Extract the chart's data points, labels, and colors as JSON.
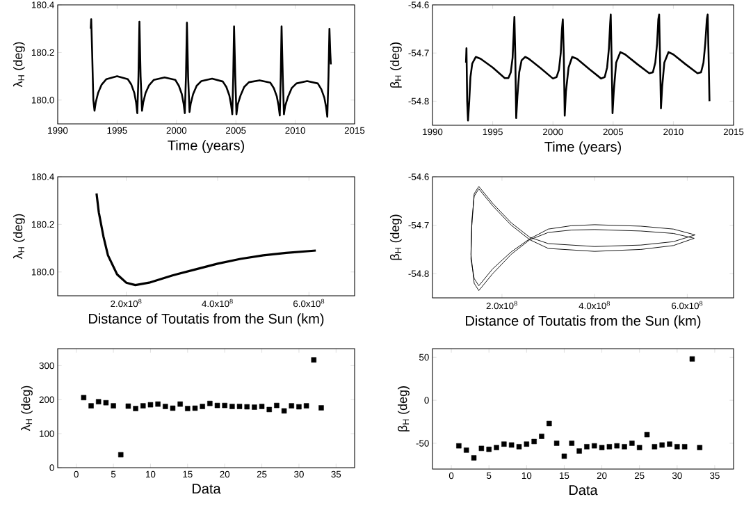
{
  "chart_data": [
    {
      "type": "line",
      "xlabel": "Time (years)",
      "ylabel": "λ$_{H}$ (deg)",
      "color": "#000000",
      "xlim": [
        1990,
        2015
      ],
      "ylim": [
        179.9,
        180.4
      ],
      "xticks": [
        1990,
        1995,
        2000,
        2005,
        2010,
        2015
      ],
      "yticks": [
        {
          "value": 180,
          "label": "180.0"
        },
        180.2,
        180.4
      ],
      "x": [
        1992.78,
        1992.82,
        1992.9,
        1993.0,
        1993.1,
        1993.2,
        1993.4,
        1993.7,
        1994.1,
        1995.0,
        1995.9,
        1996.2,
        1996.45,
        1996.6,
        1996.7,
        1996.8,
        1996.88,
        1996.98,
        1997.1,
        1997.2,
        1997.4,
        1997.7,
        1998.1,
        1999.0,
        1999.9,
        2000.2,
        2000.45,
        2000.6,
        2000.7,
        2000.8,
        2000.88,
        2000.98,
        2001.1,
        2001.2,
        2001.4,
        2001.7,
        2002.1,
        2003.0,
        2003.9,
        2004.2,
        2004.45,
        2004.6,
        2004.7,
        2004.78,
        2004.85,
        2004.95,
        2005.05,
        2005.15,
        2005.4,
        2005.7,
        2006.1,
        2007.0,
        2007.9,
        2008.2,
        2008.45,
        2008.6,
        2008.7,
        2008.78,
        2008.85,
        2008.95,
        2009.05,
        2009.15,
        2009.4,
        2009.7,
        2010.1,
        2011.0,
        2011.9,
        2012.2,
        2012.45,
        2012.6,
        2012.7,
        2012.8,
        2012.88,
        2012.95,
        2013.0
      ],
      "values": [
        180.3,
        180.34,
        180.2,
        180.0,
        179.955,
        179.99,
        180.03,
        180.065,
        180.088,
        180.1,
        180.088,
        180.065,
        180.03,
        179.99,
        179.945,
        180.1,
        180.33,
        180.1,
        179.955,
        179.99,
        180.03,
        180.063,
        180.085,
        180.095,
        180.085,
        180.06,
        180.025,
        179.985,
        179.945,
        180.1,
        180.325,
        180.1,
        179.95,
        179.985,
        180.025,
        180.06,
        180.08,
        180.09,
        180.078,
        180.055,
        180.02,
        179.98,
        179.94,
        180.1,
        180.31,
        180.1,
        179.94,
        179.98,
        180.02,
        180.055,
        180.075,
        180.083,
        180.073,
        180.05,
        180.015,
        179.975,
        179.935,
        180.1,
        180.31,
        180.1,
        179.94,
        179.975,
        180.015,
        180.05,
        180.07,
        180.08,
        180.07,
        180.045,
        180.01,
        179.97,
        179.93,
        180.1,
        180.3,
        180.2,
        180.15
      ]
    },
    {
      "type": "line",
      "xlabel": "Time (years)",
      "ylabel": "β$_{H}$ (deg)",
      "color": "#000000",
      "xlim": [
        1990,
        2015
      ],
      "ylim": [
        -54.85,
        -54.6
      ],
      "xticks": [
        1990,
        1995,
        2000,
        2005,
        2010,
        2015
      ],
      "yticks": [
        -54.8,
        -54.7,
        -54.6
      ],
      "x": [
        1992.78,
        1992.82,
        1992.88,
        1992.95,
        1993.05,
        1993.15,
        1993.3,
        1993.6,
        1994.0,
        1995.0,
        1996.0,
        1996.3,
        1996.5,
        1996.65,
        1996.74,
        1996.8,
        1996.87,
        1996.95,
        1997.05,
        1997.2,
        1997.4,
        1997.7,
        1998.0,
        1999.0,
        2000.0,
        2000.3,
        2000.5,
        2000.65,
        2000.75,
        2000.82,
        2000.9,
        2000.98,
        2001.08,
        2001.3,
        2001.6,
        2002.0,
        2003.0,
        2004.0,
        2004.3,
        2004.5,
        2004.65,
        2004.75,
        2004.8,
        2004.88,
        2004.95,
        2005.05,
        2005.25,
        2005.6,
        2006.0,
        2007.0,
        2008.0,
        2008.3,
        2008.5,
        2008.65,
        2008.75,
        2008.82,
        2008.9,
        2008.97,
        2009.07,
        2009.25,
        2009.6,
        2010.0,
        2011.0,
        2012.0,
        2012.3,
        2012.5,
        2012.65,
        2012.78,
        2012.85,
        2012.92,
        2013.0
      ],
      "values": [
        -54.72,
        -54.69,
        -54.8,
        -54.84,
        -54.8,
        -54.75,
        -54.722,
        -54.708,
        -54.712,
        -54.73,
        -54.752,
        -54.752,
        -54.74,
        -54.71,
        -54.66,
        -54.625,
        -54.7,
        -54.835,
        -54.79,
        -54.74,
        -54.715,
        -54.708,
        -54.712,
        -54.732,
        -54.753,
        -54.75,
        -54.735,
        -54.7,
        -54.65,
        -54.63,
        -54.7,
        -54.83,
        -54.78,
        -54.73,
        -54.708,
        -54.712,
        -54.733,
        -54.753,
        -54.75,
        -54.73,
        -54.69,
        -54.64,
        -54.62,
        -54.72,
        -54.825,
        -54.78,
        -54.72,
        -54.698,
        -54.703,
        -54.723,
        -54.742,
        -54.74,
        -54.72,
        -54.68,
        -54.63,
        -54.62,
        -54.72,
        -54.815,
        -54.77,
        -54.72,
        -54.698,
        -54.703,
        -54.723,
        -54.742,
        -54.74,
        -54.72,
        -54.68,
        -54.63,
        -54.62,
        -54.7,
        -54.8
      ]
    },
    {
      "type": "line",
      "xlabel": "Distance of Toutatis from the Sun (km)",
      "ylabel": "λ$_{H}$ (deg)",
      "color": "#000000",
      "xlim": [
        50000000,
        700000000
      ],
      "ylim": [
        179.9,
        180.4
      ],
      "xticks": [
        {
          "value": 200000000,
          "label": "2.0x10$^{8}$"
        },
        {
          "value": 400000000,
          "label": "4.0x10$^{8}$"
        },
        {
          "value": 600000000,
          "label": "6.0x10$^{8}$"
        }
      ],
      "yticks": [
        {
          "value": 180,
          "label": "180.0"
        },
        180.2,
        180.4
      ],
      "x": [
        135000000,
        140000000,
        150000000,
        160000000,
        180000000,
        200000000,
        220000000,
        250000000,
        300000000,
        350000000,
        400000000,
        450000000,
        500000000,
        550000000,
        615000000
      ],
      "values": [
        180.33,
        180.25,
        180.15,
        180.07,
        179.99,
        179.955,
        179.945,
        179.955,
        179.985,
        180.01,
        180.035,
        180.055,
        180.07,
        180.08,
        180.09
      ]
    },
    {
      "type": "line",
      "xlabel": "Distance of Toutatis from the Sun (km)",
      "ylabel": "β$_{H}$ (deg)",
      "color": "#000000",
      "xlim": [
        50000000,
        700000000
      ],
      "ylim": [
        -54.85,
        -54.6
      ],
      "xticks": [
        {
          "value": 200000000,
          "label": "2.0x10$^{8}$"
        },
        {
          "value": 400000000,
          "label": "4.0x10$^{8}$"
        },
        {
          "value": 600000000,
          "label": "6.0x10$^{8}$"
        }
      ],
      "yticks": [
        -54.8,
        -54.7,
        -54.6
      ],
      "x": [
        135000000,
        133000000,
        140000000,
        150000000,
        180000000,
        220000000,
        260000000,
        300000000,
        350000000,
        400000000,
        500000000,
        570000000,
        615000000,
        570000000,
        500000000,
        400000000,
        300000000,
        260000000,
        220000000,
        180000000,
        150000000,
        140000000,
        135000000,
        133000000,
        140000000,
        150000000,
        180000000,
        220000000,
        260000000,
        300000000,
        350000000,
        400000000,
        500000000,
        570000000,
        617000000,
        570000000,
        500000000,
        400000000,
        300000000,
        260000000,
        220000000,
        180000000,
        150000000,
        140000000,
        135000000
      ],
      "values": [
        -54.69,
        -54.76,
        -54.82,
        -54.835,
        -54.8,
        -54.76,
        -54.73,
        -54.715,
        -54.71,
        -54.709,
        -54.712,
        -54.717,
        -54.727,
        -54.742,
        -54.75,
        -54.754,
        -54.748,
        -54.73,
        -54.7,
        -54.66,
        -54.625,
        -54.64,
        -54.69,
        -54.77,
        -54.81,
        -54.825,
        -54.79,
        -54.755,
        -54.728,
        -54.708,
        -54.701,
        -54.699,
        -54.702,
        -54.708,
        -54.72,
        -54.734,
        -54.741,
        -54.744,
        -54.738,
        -54.725,
        -54.695,
        -54.655,
        -54.62,
        -54.635,
        -54.7
      ]
    },
    {
      "type": "scatter",
      "marker": "square",
      "xlabel": "Data",
      "ylabel": "λ$_{H}$ (deg)",
      "color": "#000000",
      "xlim": [
        -2.5,
        37.5
      ],
      "ylim": [
        0,
        350
      ],
      "xticks": [
        0,
        5,
        10,
        15,
        20,
        25,
        30,
        35
      ],
      "yticks": [
        0,
        100,
        200,
        300
      ],
      "x": [
        1,
        2,
        3,
        4,
        5,
        6,
        7,
        8,
        9,
        10,
        11,
        12,
        13,
        14,
        15,
        16,
        17,
        18,
        19,
        20,
        21,
        22,
        23,
        24,
        25,
        26,
        27,
        28,
        29,
        30,
        31,
        32,
        33
      ],
      "values": [
        206,
        182,
        194,
        191,
        182,
        38,
        181,
        174,
        182,
        185,
        187,
        180,
        175,
        187,
        174,
        175,
        180,
        189,
        183,
        183,
        180,
        180,
        179,
        178,
        180,
        171,
        183,
        167,
        182,
        179,
        182,
        317,
        176
      ]
    },
    {
      "type": "scatter",
      "marker": "square",
      "xlabel": "Data",
      "ylabel": "β$_{H}$ (deg)",
      "color": "#000000",
      "xlim": [
        -2.5,
        37.5
      ],
      "ylim": [
        -80,
        60
      ],
      "xticks": [
        0,
        5,
        10,
        15,
        20,
        25,
        30,
        35
      ],
      "yticks": [
        -50,
        0,
        50
      ],
      "x": [
        1,
        2,
        3,
        4,
        5,
        6,
        7,
        8,
        9,
        10,
        11,
        12,
        13,
        14,
        15,
        16,
        17,
        18,
        19,
        20,
        21,
        22,
        23,
        24,
        25,
        26,
        27,
        28,
        29,
        30,
        31,
        32,
        33
      ],
      "values": [
        -53,
        -58,
        -67,
        -56,
        -57,
        -55,
        -51,
        -52,
        -54,
        -51,
        -48,
        -42,
        -27,
        -50,
        -65,
        -50,
        -59,
        -54,
        -53,
        -55,
        -54,
        -53,
        -54,
        -50,
        -55,
        -40,
        -54,
        -52,
        -51,
        -54,
        -54,
        48,
        -55
      ]
    }
  ]
}
